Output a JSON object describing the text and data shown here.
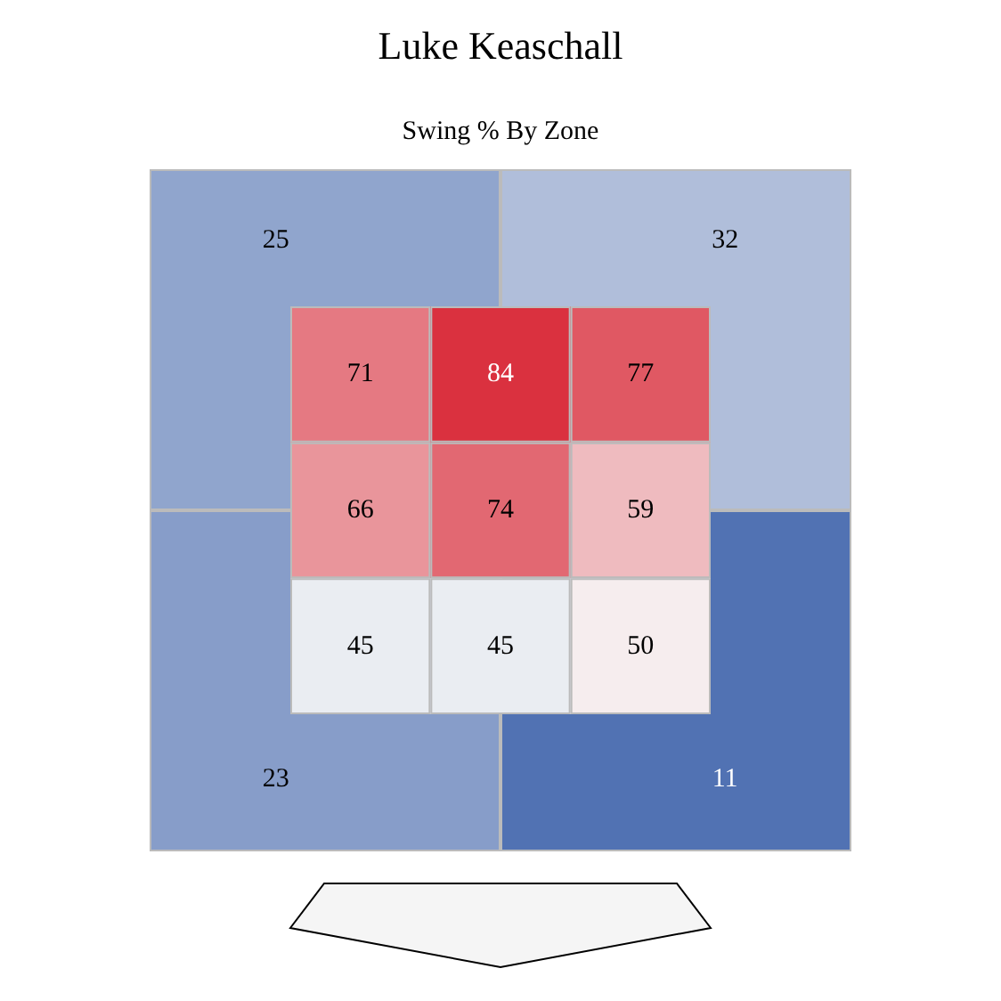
{
  "chart_data": [
    {
      "type": "heatmap",
      "title": "Luke Keaschall",
      "subtitle": "Swing % By Zone",
      "categories": [
        null,
        null
      ],
      "y_categories": [
        null,
        null
      ],
      "cells": [
        [
          25,
          32
        ],
        [
          23,
          11
        ]
      ],
      "data_labels": true
    },
    {
      "type": "heatmap",
      "categories": [
        null,
        null,
        null
      ],
      "y_categories": [
        null,
        null,
        null
      ],
      "cells": [
        [
          71,
          84,
          77
        ],
        [
          66,
          74,
          59
        ],
        [
          45,
          45,
          50
        ]
      ],
      "data_labels": true
    }
  ]
}
